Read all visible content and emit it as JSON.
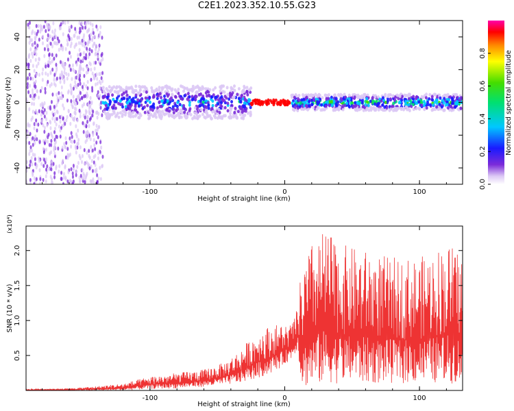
{
  "figure_title": "C2E1.2023.352.10.55.G23",
  "chart_data": [
    {
      "type": "heatmap",
      "title": "",
      "xlabel": "Height of straight line (km)",
      "ylabel": "Frequency (Hz)",
      "xlim": [
        -192,
        132
      ],
      "ylim": [
        -50,
        50
      ],
      "xticks": [
        -100,
        0,
        100
      ],
      "yticks": [
        -40,
        -20,
        0,
        20,
        40
      ],
      "grid": false,
      "colorbar": {
        "label": "Normalized spectral amplitude",
        "range": [
          0,
          1
        ],
        "ticks": [
          "0.0",
          "0.2",
          "0.4",
          "0.6",
          "0.8"
        ],
        "colors": [
          "#ffffff",
          "#dcc8f5",
          "#7b2bd9",
          "#1a1aff",
          "#00c8ff",
          "#00e070",
          "#44dd00",
          "#ffff00",
          "#ff8800",
          "#ff0000",
          "#ff00aa"
        ]
      },
      "features": [
        {
          "x_range": [
            -192,
            -135
          ],
          "freq_spread_hz": [
            -50,
            50
          ],
          "amplitude": 0.12,
          "description_color": "#7b2bd9"
        },
        {
          "x_range": [
            -135,
            -25
          ],
          "freq_spread_hz": [
            -10,
            10
          ],
          "amplitude": 0.4,
          "description_color": "#00c8ff"
        },
        {
          "x_range": [
            -25,
            5
          ],
          "freq_center_hz": 0,
          "amplitude": 0.95,
          "description_color": "#ff0000"
        },
        {
          "x_range": [
            5,
            132
          ],
          "freq_spread_hz": [
            -5,
            5
          ],
          "amplitude": 0.55,
          "description_color": "#44dd00"
        }
      ]
    },
    {
      "type": "line",
      "title": "",
      "xlabel": "Height of straight line (km)",
      "ylabel": "SNR (10 * v/v)",
      "y_multiplier": "(x10⁴)",
      "xlim": [
        -192,
        132
      ],
      "ylim": [
        0,
        2.35
      ],
      "xticks": [
        -100,
        0,
        100
      ],
      "yticks": [
        0.5,
        1.0,
        1.5,
        2.0
      ],
      "ytick_labels": [
        "0.5",
        "1.0",
        "1.5",
        "2.0"
      ],
      "color": "#ee3333",
      "envelope": {
        "x": [
          -192,
          -160,
          -140,
          -120,
          -100,
          -80,
          -60,
          -45,
          -35,
          -25,
          -15,
          -5,
          5,
          10,
          12,
          20,
          30,
          40,
          60,
          80,
          100,
          120,
          132
        ],
        "baseline": [
          0.0,
          0.0,
          0.0,
          0.0,
          0.02,
          0.03,
          0.05,
          0.08,
          0.1,
          0.15,
          0.2,
          0.3,
          0.45,
          0.6,
          0.05,
          0.05,
          0.1,
          0.1,
          0.1,
          0.1,
          0.1,
          0.1,
          0.1
        ],
        "peak": [
          0.02,
          0.03,
          0.06,
          0.1,
          0.2,
          0.25,
          0.3,
          0.4,
          0.55,
          0.75,
          0.9,
          0.95,
          0.95,
          1.2,
          1.7,
          2.1,
          2.3,
          2.1,
          2.0,
          1.9,
          1.9,
          2.1,
          2.0
        ]
      }
    }
  ]
}
